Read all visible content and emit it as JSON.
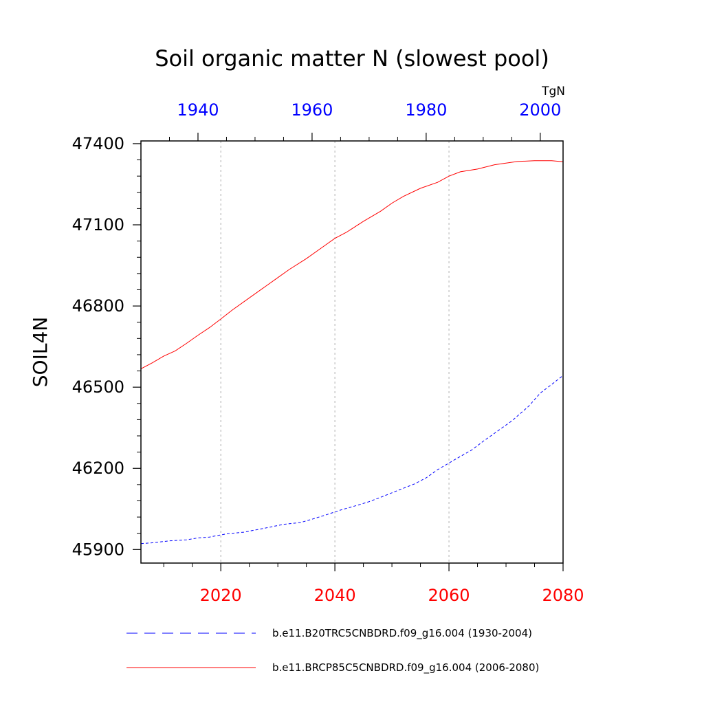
{
  "chart_data": {
    "type": "line",
    "title": "Soil organic matter N (slowest pool)",
    "units": "TgN",
    "ylabel": "SOIL4N",
    "ylim": [
      45850,
      47410
    ],
    "yticks": [
      45900,
      46200,
      46500,
      46800,
      47100,
      47400
    ],
    "x_bottom": {
      "range": [
        2006,
        2080
      ],
      "ticks": [
        2020,
        2040,
        2060,
        2080
      ],
      "color": "#ff0000"
    },
    "x_top": {
      "range": [
        1930,
        2004
      ],
      "ticks": [
        1940,
        1960,
        1980,
        2000
      ],
      "color": "#0000ff"
    },
    "grid": "vertical dashed at bottom-axis major ticks",
    "legend_position": "bottom",
    "series": [
      {
        "name": "b.e11.B20TRC5CNBDRD.f09_g16.004 (1930-2004)",
        "axis": "top",
        "color": "#0000ff",
        "style": "dashed",
        "x": [
          1930,
          1932,
          1935,
          1938,
          1940,
          1942,
          1945,
          1948,
          1950,
          1952,
          1955,
          1958,
          1960,
          1962,
          1965,
          1968,
          1970,
          1972,
          1975,
          1978,
          1980,
          1982,
          1985,
          1988,
          1990,
          1992,
          1995,
          1998,
          2000,
          2002,
          2004
        ],
        "y": [
          45922,
          45925,
          45932,
          45936,
          45943,
          45946,
          45958,
          45964,
          45972,
          45980,
          45993,
          46000,
          46012,
          46025,
          46046,
          46064,
          46077,
          46093,
          46118,
          46143,
          46165,
          46195,
          46232,
          46268,
          46300,
          46330,
          46375,
          46430,
          46478,
          46510,
          46543
        ]
      },
      {
        "name": "b.e11.BRCP85C5CNBDRD.f09_g16.004 (2006-2080)",
        "axis": "bottom",
        "color": "#ff0000",
        "style": "solid",
        "x": [
          2006,
          2008,
          2010,
          2012,
          2014,
          2016,
          2018,
          2020,
          2022,
          2025,
          2028,
          2030,
          2032,
          2035,
          2038,
          2040,
          2042,
          2045,
          2048,
          2050,
          2052,
          2055,
          2058,
          2060,
          2062,
          2065,
          2068,
          2070,
          2072,
          2075,
          2078,
          2080
        ],
        "y": [
          46568,
          46590,
          46615,
          46634,
          46662,
          46692,
          46720,
          46752,
          46785,
          46830,
          46875,
          46905,
          46935,
          46975,
          47020,
          47050,
          47072,
          47113,
          47150,
          47180,
          47205,
          47235,
          47257,
          47280,
          47296,
          47306,
          47322,
          47328,
          47334,
          47337,
          47337,
          47333
        ]
      }
    ]
  }
}
